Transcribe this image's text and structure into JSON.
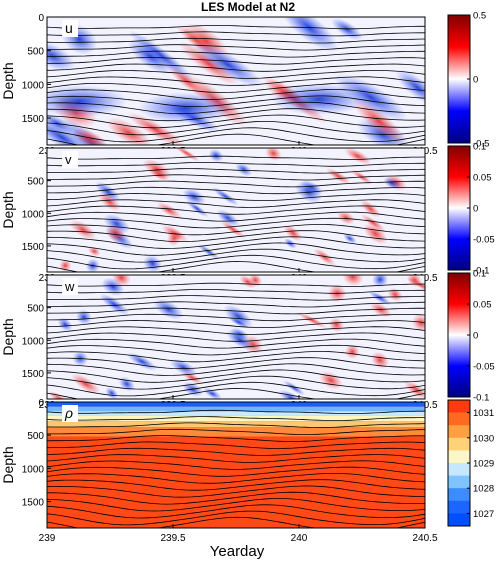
{
  "title": "LES Model at N2",
  "xlabel": "Yearday",
  "colors": {
    "diverging": [
      "#000080",
      "#0000ff",
      "#ffffff",
      "#ff0000",
      "#800000"
    ],
    "density": [
      "#0050ff",
      "#3d8cff",
      "#7fc3ff",
      "#c6e8ff",
      "#fdf7c8",
      "#ffd27a",
      "#ffa040",
      "#ff6a20",
      "#ff3a10"
    ],
    "contour": "#000000"
  },
  "chart_data": [
    {
      "type": "heatmap",
      "panel_label": "u",
      "ylabel": "Depth",
      "xlim": [
        239,
        240.5
      ],
      "ylim": [
        1900,
        0
      ],
      "y_reversed": true,
      "x_ticks": [
        "239",
        "239.5",
        "240",
        "240.5"
      ],
      "y_ticks": [
        "0",
        "500",
        "1000",
        "1500"
      ],
      "y_tick_values": [
        0,
        500,
        1000,
        1500
      ],
      "colorbar": {
        "min": -0.5,
        "max": 0.5,
        "tick_labels": [
          "0.5",
          "0",
          "-0.5"
        ],
        "tick_values": [
          0.5,
          0,
          -0.5
        ]
      },
      "colormap": "diverging",
      "overlay": "isopycnal contours"
    },
    {
      "type": "heatmap",
      "panel_label": "v",
      "ylabel": "Depth",
      "xlim": [
        239,
        240.5
      ],
      "ylim": [
        1900,
        0
      ],
      "y_reversed": true,
      "x_ticks": [
        "239",
        "239.5",
        "240",
        "240.5"
      ],
      "y_ticks": [
        "500",
        "1000",
        "1500"
      ],
      "y_tick_values": [
        500,
        1000,
        1500
      ],
      "colorbar": {
        "min": -0.1,
        "max": 0.1,
        "tick_labels": [
          "0.1",
          "0.05",
          "0",
          "-0.05",
          "-0.1"
        ],
        "tick_values": [
          0.1,
          0.05,
          0,
          -0.05,
          -0.1
        ]
      },
      "colormap": "diverging",
      "overlay": "isopycnal contours"
    },
    {
      "type": "heatmap",
      "panel_label": "w",
      "ylabel": "Depth",
      "xlim": [
        239,
        240.5
      ],
      "ylim": [
        1900,
        0
      ],
      "y_reversed": true,
      "x_ticks": [
        "239",
        "239.5",
        "240",
        "240.5"
      ],
      "y_ticks": [
        "500",
        "1000",
        "1500"
      ],
      "y_tick_values": [
        500,
        1000,
        1500
      ],
      "colorbar": {
        "min": -0.1,
        "max": 0.1,
        "tick_labels": [
          "0.1",
          "0.05",
          "0",
          "-0.05",
          "-0.1"
        ],
        "tick_values": [
          0.1,
          0.05,
          0,
          -0.05,
          -0.1
        ]
      },
      "colormap": "diverging",
      "overlay": "isopycnal contours"
    },
    {
      "type": "heatmap",
      "panel_label": "ρ",
      "ylabel": "Depth",
      "xlim": [
        239,
        240.5
      ],
      "ylim": [
        1900,
        0
      ],
      "y_reversed": true,
      "x_ticks": [
        "239",
        "239.5",
        "240",
        "240.5"
      ],
      "y_ticks": [
        "0",
        "500",
        "1000",
        "1500"
      ],
      "y_tick_values": [
        0,
        500,
        1000,
        1500
      ],
      "colorbar": {
        "min": 1026.5,
        "max": 1031.5,
        "tick_labels": [
          "1031",
          "1030",
          "1029",
          "1028",
          "1027"
        ],
        "tick_values": [
          1031,
          1030,
          1029,
          1028,
          1027
        ],
        "levels": 10
      },
      "colormap": "density",
      "overlay": "isopycnal contours"
    }
  ]
}
